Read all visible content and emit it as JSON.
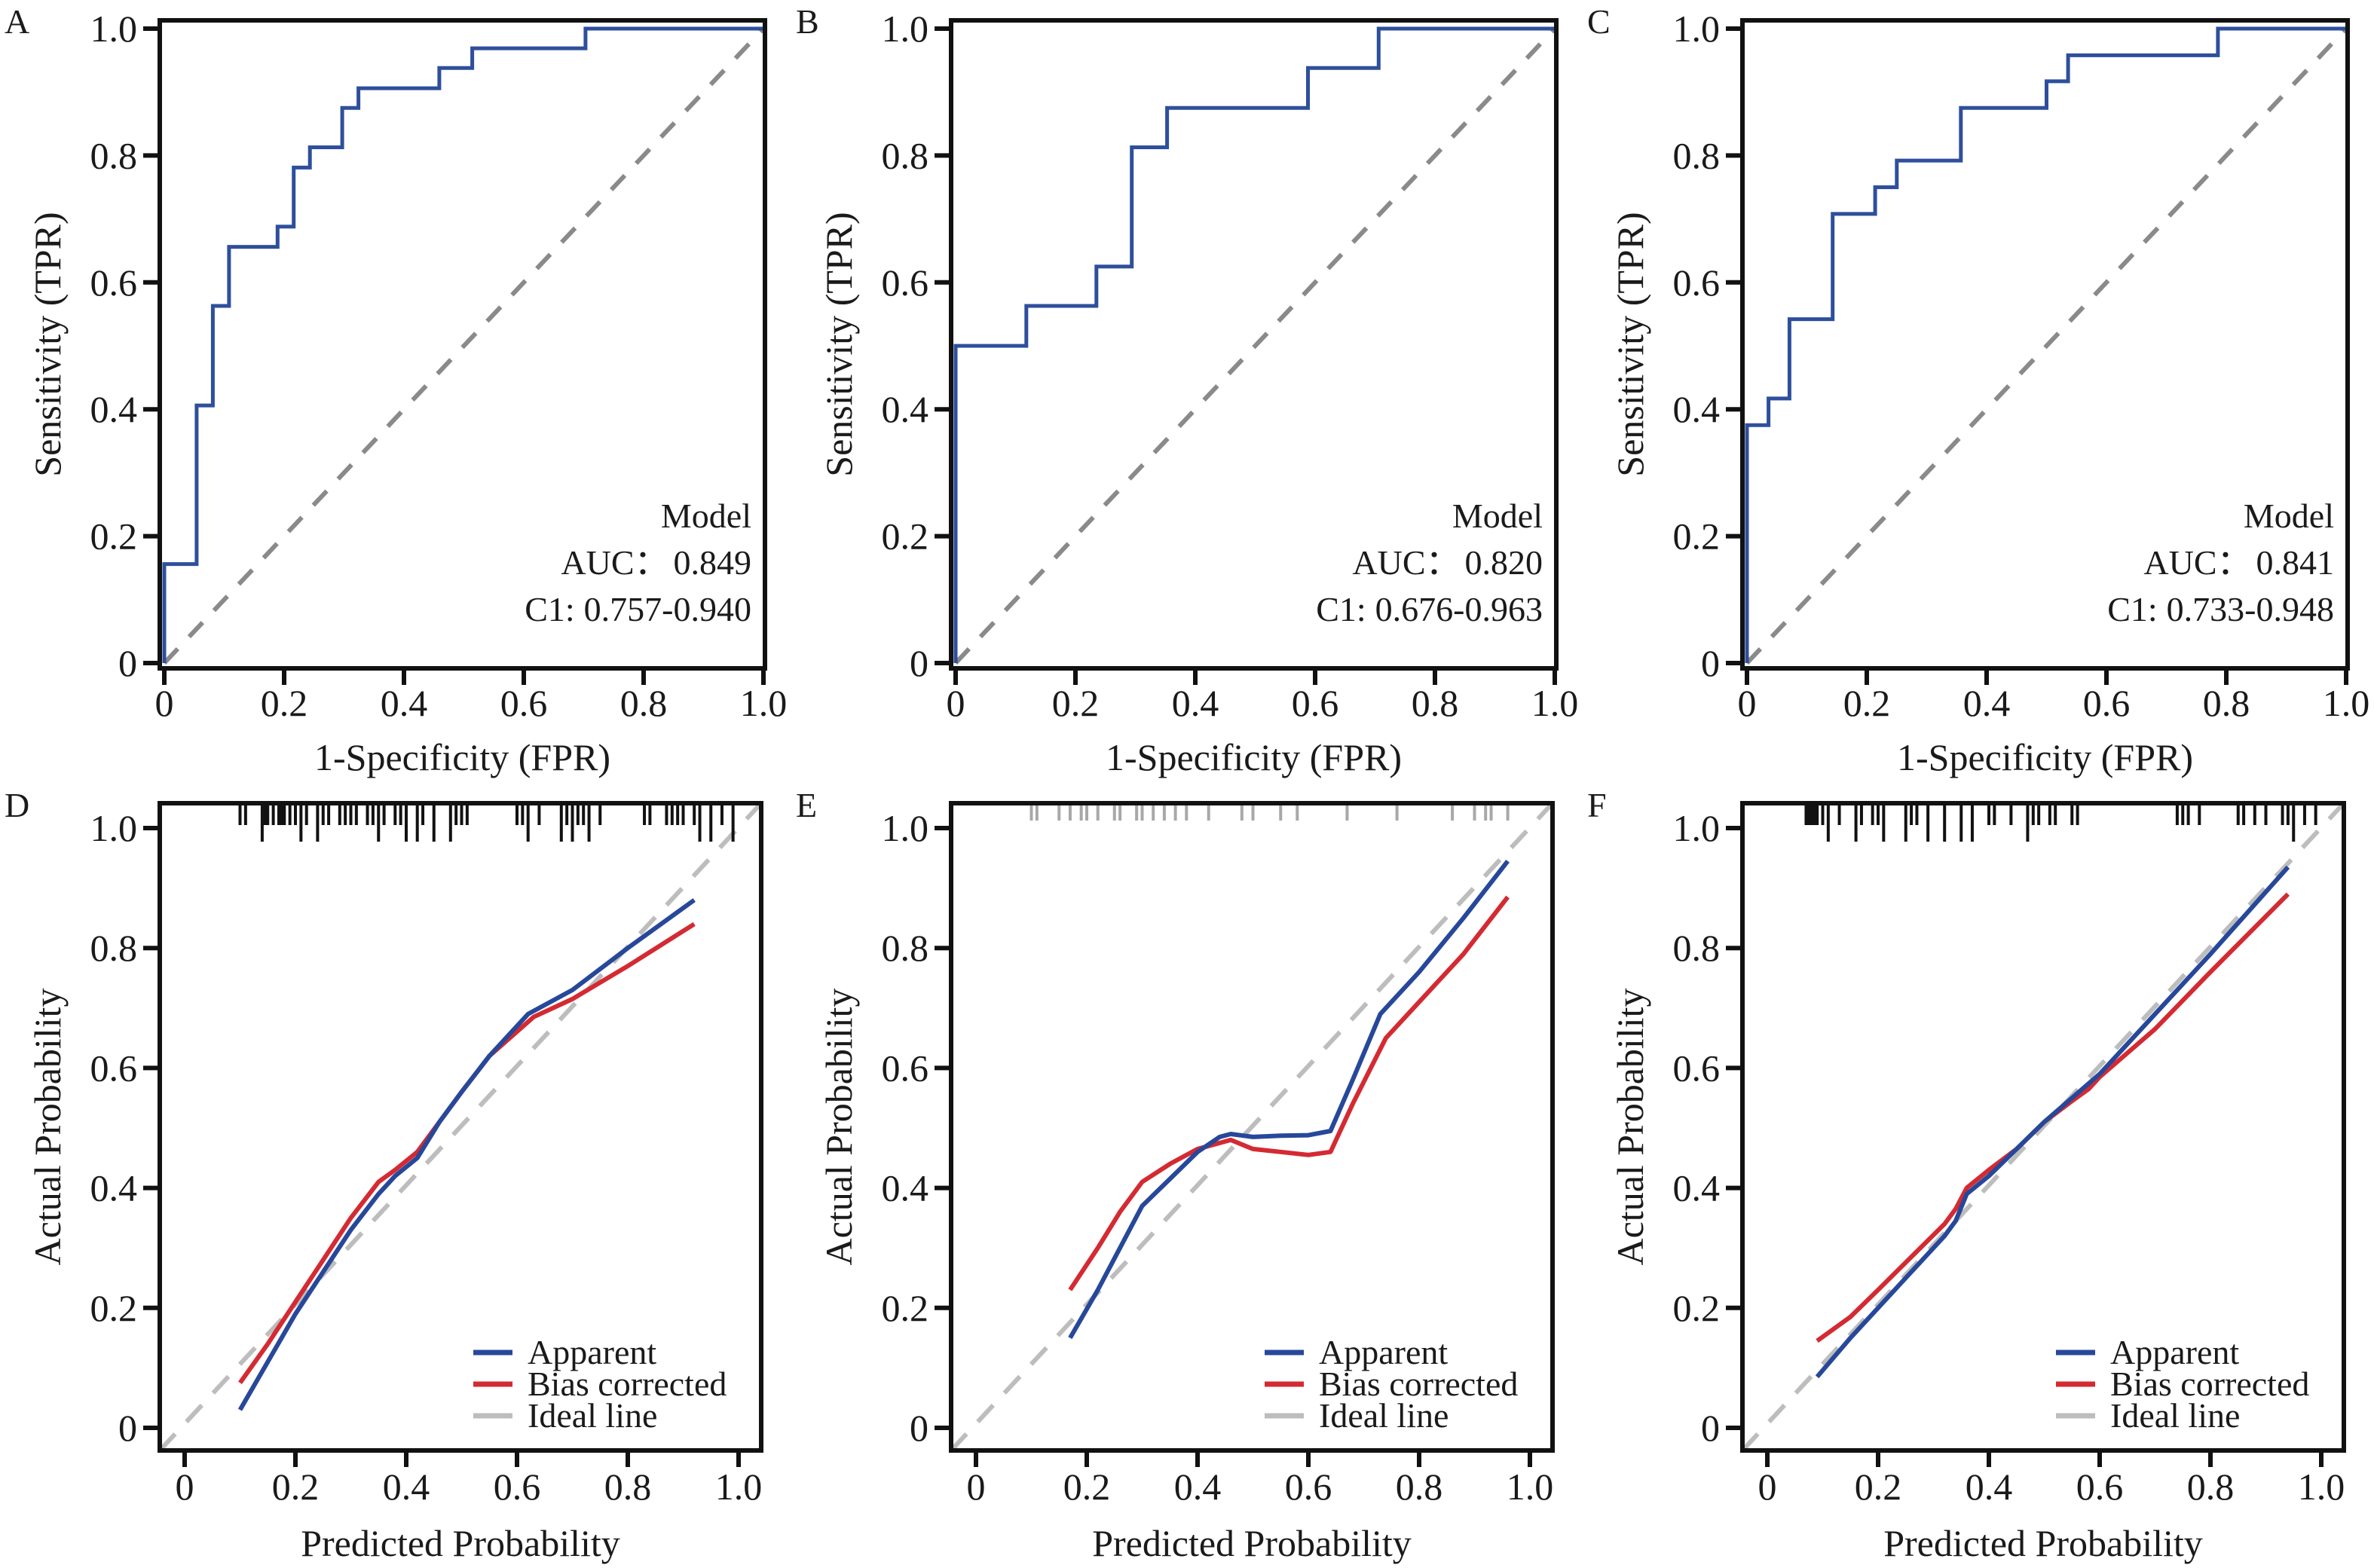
{
  "figure": {
    "colors": {
      "roc_curve": "#2e4f9c",
      "roc_diagonal": "#8a8a8a",
      "apparent": "#27489a",
      "bias_corrected": "#d42a32",
      "ideal": "#bdbdbd",
      "rug_dark": "#111111",
      "rug_light": "#a8a8a8",
      "axis": "#111111"
    }
  },
  "chart_data": [
    {
      "panel": "A",
      "type": "line",
      "subtype": "roc-step",
      "xlabel": "1-Specificity (FPR)",
      "ylabel": "Sensitivity (TPR)",
      "xlim": [
        0,
        1.0
      ],
      "ylim": [
        0,
        1.0
      ],
      "xticks": [
        "0",
        "0.2",
        "0.4",
        "0.6",
        "0.8",
        "1.0"
      ],
      "yticks": [
        "0",
        "0.2",
        "0.4",
        "0.6",
        "0.8",
        "1.0"
      ],
      "annotation": {
        "title": "Model",
        "auc_label": "AUC：",
        "auc": "0.849",
        "ci_label": "C1:",
        "ci": "0.757-0.940"
      },
      "legend_position": "bottom-right",
      "reference_line": "diagonal dashed",
      "series": [
        {
          "name": "Model",
          "x": [
            0,
            0,
            0.054,
            0.054,
            0.081,
            0.081,
            0.108,
            0.108,
            0.189,
            0.189,
            0.216,
            0.216,
            0.243,
            0.243,
            0.297,
            0.297,
            0.324,
            0.324,
            0.459,
            0.459,
            0.514,
            0.514,
            0.703,
            0.703,
            1.0
          ],
          "y": [
            0,
            0.156,
            0.156,
            0.406,
            0.406,
            0.563,
            0.563,
            0.656,
            0.656,
            0.688,
            0.688,
            0.781,
            0.781,
            0.813,
            0.813,
            0.875,
            0.875,
            0.906,
            0.906,
            0.938,
            0.938,
            0.969,
            0.969,
            1.0,
            1.0
          ]
        }
      ]
    },
    {
      "panel": "B",
      "type": "line",
      "subtype": "roc-step",
      "xlabel": "1-Specificity (FPR)",
      "ylabel": "Sensitivity (TPR)",
      "xlim": [
        0,
        1.0
      ],
      "ylim": [
        0,
        1.0
      ],
      "xticks": [
        "0",
        "0.2",
        "0.4",
        "0.6",
        "0.8",
        "1.0"
      ],
      "yticks": [
        "0",
        "0.2",
        "0.4",
        "0.6",
        "0.8",
        "1.0"
      ],
      "annotation": {
        "title": "Model",
        "auc_label": "AUC：",
        "auc": "0.820",
        "ci_label": "C1:",
        "ci": "0.676-0.963"
      },
      "legend_position": "bottom-right",
      "reference_line": "diagonal dashed",
      "series": [
        {
          "name": "Model",
          "x": [
            0,
            0,
            0.118,
            0.118,
            0.235,
            0.235,
            0.294,
            0.294,
            0.353,
            0.353,
            0.588,
            0.588,
            0.706,
            0.706,
            1.0
          ],
          "y": [
            0,
            0.5,
            0.5,
            0.563,
            0.563,
            0.625,
            0.625,
            0.813,
            0.813,
            0.875,
            0.875,
            0.938,
            0.938,
            1.0,
            1.0
          ]
        }
      ]
    },
    {
      "panel": "C",
      "type": "line",
      "subtype": "roc-step",
      "xlabel": "1-Specificity (FPR)",
      "ylabel": "Sensitivity (TPR)",
      "xlim": [
        0,
        1.0
      ],
      "ylim": [
        0,
        1.0
      ],
      "xticks": [
        "0",
        "0.2",
        "0.4",
        "0.6",
        "0.8",
        "1.0"
      ],
      "yticks": [
        "0",
        "0.2",
        "0.4",
        "0.6",
        "0.8",
        "1.0"
      ],
      "annotation": {
        "title": "Model",
        "auc_label": "AUC：",
        "auc": "0.841",
        "ci_label": "C1:",
        "ci": "0.733-0.948"
      },
      "legend_position": "bottom-right",
      "reference_line": "diagonal dashed",
      "series": [
        {
          "name": "Model",
          "x": [
            0,
            0,
            0.036,
            0.036,
            0.071,
            0.071,
            0.143,
            0.143,
            0.214,
            0.214,
            0.25,
            0.25,
            0.357,
            0.357,
            0.5,
            0.5,
            0.536,
            0.536,
            0.786,
            0.786,
            1.0
          ],
          "y": [
            0,
            0.375,
            0.375,
            0.417,
            0.417,
            0.542,
            0.542,
            0.708,
            0.708,
            0.75,
            0.75,
            0.792,
            0.792,
            0.875,
            0.875,
            0.917,
            0.917,
            0.958,
            0.958,
            1.0,
            1.0
          ]
        }
      ]
    },
    {
      "panel": "D",
      "type": "line",
      "subtype": "calibration",
      "xlabel": "Predicted Probability",
      "ylabel": "Actual Probability",
      "xlim": [
        -0.04,
        1.04
      ],
      "ylim": [
        -0.04,
        1.04
      ],
      "xticks": [
        "0",
        "0.2",
        "0.4",
        "0.6",
        "0.8",
        "1.0"
      ],
      "yticks": [
        "0",
        "0.2",
        "0.4",
        "0.6",
        "0.8",
        "1.0"
      ],
      "legend": [
        "Apparent",
        "Bias corrected",
        "Ideal line"
      ],
      "legend_position": "bottom-right",
      "rug_style": "dark",
      "rug": [
        0.1,
        0.11,
        0.14,
        0.145,
        0.15,
        0.16,
        0.17,
        0.175,
        0.18,
        0.19,
        0.2,
        0.21,
        0.22,
        0.24,
        0.25,
        0.26,
        0.28,
        0.29,
        0.3,
        0.31,
        0.33,
        0.34,
        0.35,
        0.36,
        0.38,
        0.39,
        0.4,
        0.42,
        0.43,
        0.45,
        0.48,
        0.49,
        0.5,
        0.51,
        0.6,
        0.61,
        0.62,
        0.64,
        0.68,
        0.69,
        0.7,
        0.71,
        0.72,
        0.73,
        0.75,
        0.83,
        0.84,
        0.87,
        0.88,
        0.89,
        0.9,
        0.92,
        0.93,
        0.95,
        0.97,
        0.99
      ],
      "rug_long": [
        0.14,
        0.21,
        0.24,
        0.35,
        0.4,
        0.42,
        0.45,
        0.48,
        0.62,
        0.68,
        0.7,
        0.73,
        0.93,
        0.95,
        0.99
      ],
      "series": [
        {
          "name": "Apparent",
          "x": [
            0.1,
            0.15,
            0.2,
            0.25,
            0.3,
            0.35,
            0.38,
            0.42,
            0.46,
            0.5,
            0.55,
            0.62,
            0.7,
            0.8,
            0.92
          ],
          "y": [
            0.03,
            0.11,
            0.19,
            0.26,
            0.33,
            0.39,
            0.42,
            0.45,
            0.51,
            0.56,
            0.62,
            0.69,
            0.73,
            0.8,
            0.88
          ]
        },
        {
          "name": "Bias corrected",
          "x": [
            0.1,
            0.15,
            0.2,
            0.25,
            0.3,
            0.35,
            0.38,
            0.42,
            0.46,
            0.5,
            0.55,
            0.63,
            0.7,
            0.8,
            0.92
          ],
          "y": [
            0.075,
            0.14,
            0.21,
            0.28,
            0.35,
            0.41,
            0.43,
            0.46,
            0.51,
            0.56,
            0.62,
            0.685,
            0.715,
            0.77,
            0.84
          ]
        },
        {
          "name": "Ideal line",
          "x": [
            -0.04,
            1.04
          ],
          "y": [
            -0.04,
            1.04
          ]
        }
      ]
    },
    {
      "panel": "E",
      "type": "line",
      "subtype": "calibration",
      "xlabel": "Predicted Probability",
      "ylabel": "Actual Probability",
      "xlim": [
        -0.04,
        1.04
      ],
      "ylim": [
        -0.04,
        1.04
      ],
      "xticks": [
        "0",
        "0.2",
        "0.4",
        "0.6",
        "0.8",
        "1.0"
      ],
      "yticks": [
        "0",
        "0.2",
        "0.4",
        "0.6",
        "0.8",
        "1.0"
      ],
      "legend": [
        "Apparent",
        "Bias corrected",
        "Ideal line"
      ],
      "legend_position": "bottom-right",
      "rug_style": "light",
      "rug": [
        0.1,
        0.11,
        0.15,
        0.17,
        0.19,
        0.2,
        0.22,
        0.25,
        0.26,
        0.29,
        0.3,
        0.32,
        0.34,
        0.36,
        0.38,
        0.42,
        0.48,
        0.5,
        0.55,
        0.58,
        0.67,
        0.76,
        0.86,
        0.9,
        0.92,
        0.93,
        0.96
      ],
      "rug_long": [],
      "series": [
        {
          "name": "Apparent",
          "x": [
            0.17,
            0.22,
            0.26,
            0.3,
            0.35,
            0.4,
            0.44,
            0.46,
            0.5,
            0.55,
            0.6,
            0.64,
            0.68,
            0.73,
            0.8,
            0.88,
            0.96
          ],
          "y": [
            0.15,
            0.23,
            0.3,
            0.37,
            0.415,
            0.46,
            0.485,
            0.49,
            0.485,
            0.487,
            0.488,
            0.495,
            0.58,
            0.69,
            0.76,
            0.85,
            0.945
          ]
        },
        {
          "name": "Bias corrected",
          "x": [
            0.17,
            0.22,
            0.26,
            0.3,
            0.35,
            0.4,
            0.44,
            0.46,
            0.5,
            0.55,
            0.6,
            0.64,
            0.68,
            0.74,
            0.8,
            0.88,
            0.96
          ],
          "y": [
            0.23,
            0.3,
            0.36,
            0.41,
            0.44,
            0.465,
            0.475,
            0.48,
            0.465,
            0.46,
            0.455,
            0.46,
            0.54,
            0.65,
            0.71,
            0.79,
            0.885
          ]
        },
        {
          "name": "Ideal line",
          "x": [
            -0.04,
            1.04
          ],
          "y": [
            -0.04,
            1.04
          ]
        }
      ]
    },
    {
      "panel": "F",
      "type": "line",
      "subtype": "calibration",
      "xlabel": "Predicted Probability",
      "ylabel": "Actual Probability",
      "xlim": [
        -0.04,
        1.04
      ],
      "ylim": [
        -0.04,
        1.04
      ],
      "xticks": [
        "0",
        "0.2",
        "0.4",
        "0.6",
        "0.8",
        "1.0"
      ],
      "yticks": [
        "0",
        "0.2",
        "0.4",
        "0.6",
        "0.8",
        "1.0"
      ],
      "legend": [
        "Apparent",
        "Bias corrected",
        "Ideal line"
      ],
      "legend_position": "bottom-right",
      "rug_style": "dark",
      "rug": [
        0.07,
        0.075,
        0.08,
        0.085,
        0.09,
        0.1,
        0.11,
        0.13,
        0.16,
        0.17,
        0.19,
        0.2,
        0.21,
        0.25,
        0.26,
        0.27,
        0.29,
        0.32,
        0.35,
        0.37,
        0.4,
        0.41,
        0.44,
        0.47,
        0.48,
        0.49,
        0.51,
        0.52,
        0.55,
        0.56,
        0.74,
        0.75,
        0.76,
        0.78,
        0.85,
        0.86,
        0.88,
        0.9,
        0.93,
        0.94,
        0.95,
        0.97,
        0.99
      ],
      "rug_long": [
        0.11,
        0.16,
        0.21,
        0.25,
        0.29,
        0.32,
        0.35,
        0.37,
        0.47,
        0.95
      ],
      "series": [
        {
          "name": "Apparent",
          "x": [
            0.09,
            0.15,
            0.2,
            0.26,
            0.32,
            0.34,
            0.36,
            0.4,
            0.45,
            0.5,
            0.55,
            0.6,
            0.7,
            0.8,
            0.94
          ],
          "y": [
            0.085,
            0.15,
            0.2,
            0.26,
            0.32,
            0.345,
            0.39,
            0.42,
            0.465,
            0.51,
            0.55,
            0.59,
            0.69,
            0.79,
            0.935
          ]
        },
        {
          "name": "Bias corrected",
          "x": [
            0.09,
            0.15,
            0.2,
            0.26,
            0.32,
            0.34,
            0.36,
            0.4,
            0.45,
            0.5,
            0.55,
            0.58,
            0.6,
            0.7,
            0.8,
            0.94
          ],
          "y": [
            0.145,
            0.185,
            0.23,
            0.285,
            0.34,
            0.365,
            0.4,
            0.43,
            0.465,
            0.51,
            0.545,
            0.565,
            0.585,
            0.665,
            0.76,
            0.89
          ]
        },
        {
          "name": "Ideal line",
          "x": [
            -0.04,
            1.04
          ],
          "y": [
            -0.04,
            1.04
          ]
        }
      ]
    }
  ]
}
